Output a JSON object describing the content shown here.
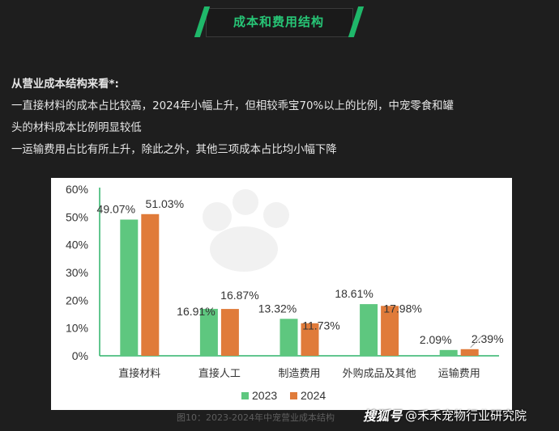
{
  "page": {
    "banner_title": "成本和费用结构",
    "heading": "从营业成本结构来看*:",
    "lines": [
      "一直接材料的成本占比较高，2024年小幅上升，但相较乖宝70%以上的比例，中宠零食和罐",
      "头的材料成本比例明显较低",
      "一运输费用占比有所上升，除此之外，其他三项成本占比均小幅下降"
    ],
    "caption": "图10：2023-2024年中宠营业成本结构",
    "watermark_logo": "搜狐号",
    "watermark_handle": "@禾禾宠物行业研究院",
    "accent_color": "#27c576"
  },
  "chart_data": {
    "type": "bar",
    "categories": [
      "直接材料",
      "直接人工",
      "制造费用",
      "外购成品及其他",
      "运输费用"
    ],
    "series": [
      {
        "name": "2023",
        "color": "#5ec77f",
        "values": [
          49.07,
          16.91,
          13.32,
          18.61,
          2.09
        ],
        "labels": [
          "49.07%",
          "16.91%",
          "13.32%",
          "18.61%",
          "2.09%"
        ]
      },
      {
        "name": "2024",
        "color": "#e07b3a",
        "values": [
          51.03,
          16.87,
          11.73,
          17.98,
          2.39
        ],
        "labels": [
          "51.03%",
          "16.87%",
          "11.73%",
          "17.98%",
          "2.39%"
        ]
      }
    ],
    "yticks": [
      "0%",
      "10%",
      "20%",
      "30%",
      "40%",
      "50%",
      "60%"
    ],
    "ylim": [
      0,
      60
    ],
    "grid": false,
    "legend_position": "bottom-center"
  }
}
